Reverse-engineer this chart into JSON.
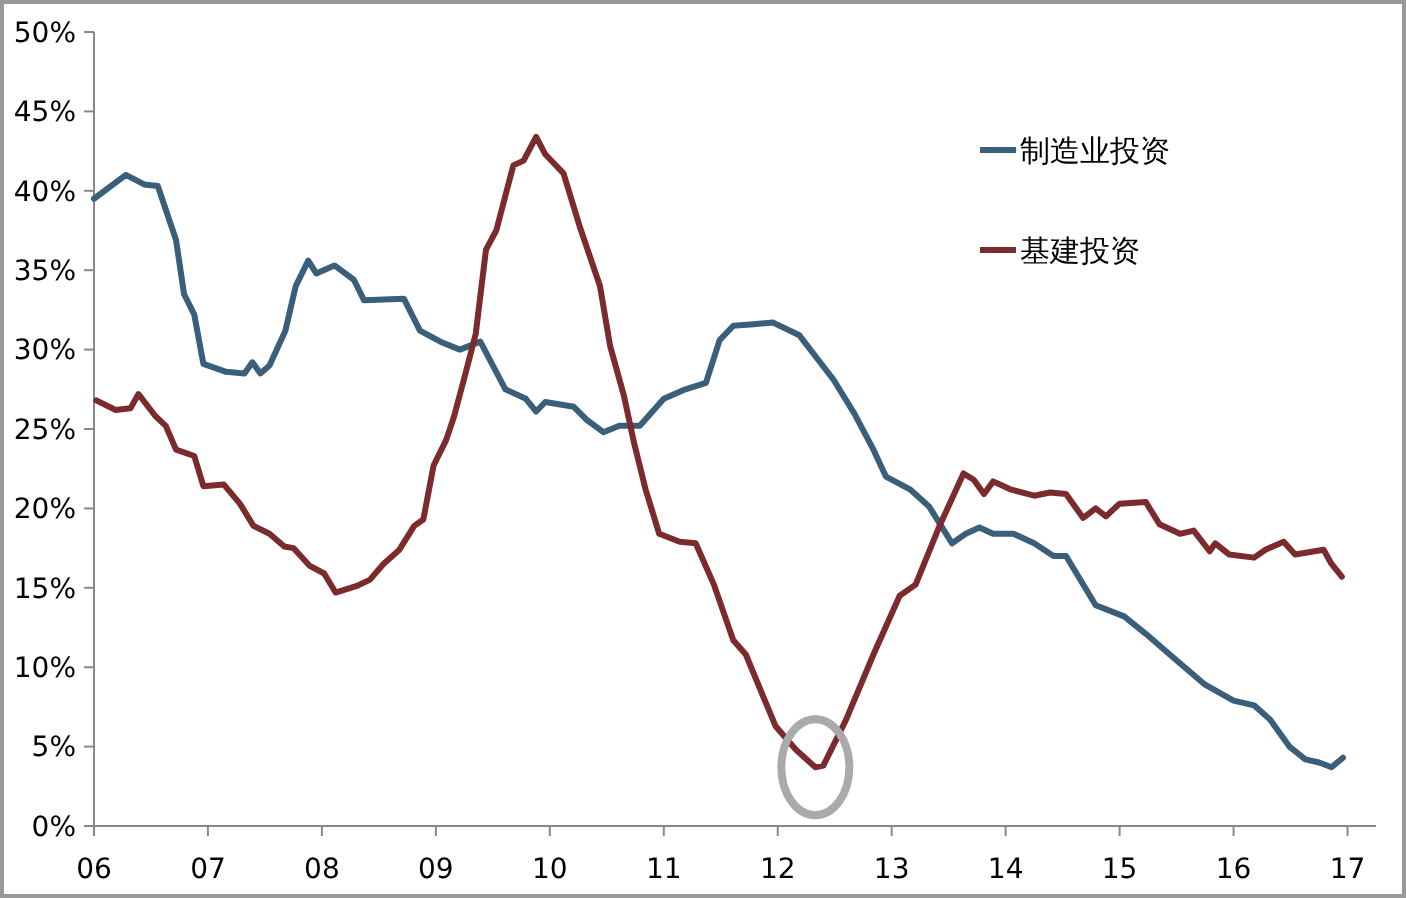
{
  "chart_data": {
    "type": "line",
    "xlim": [
      2006,
      2017.25
    ],
    "ylim": [
      0,
      50
    ],
    "xticks": [
      {
        "value": 2006,
        "label": "06"
      },
      {
        "value": 2007,
        "label": "07"
      },
      {
        "value": 2008,
        "label": "08"
      },
      {
        "value": 2009,
        "label": "09"
      },
      {
        "value": 2010,
        "label": "10"
      },
      {
        "value": 2011,
        "label": "11"
      },
      {
        "value": 2012,
        "label": "12"
      },
      {
        "value": 2013,
        "label": "13"
      },
      {
        "value": 2014,
        "label": "14"
      },
      {
        "value": 2015,
        "label": "15"
      },
      {
        "value": 2016,
        "label": "16"
      },
      {
        "value": 2017,
        "label": "17"
      }
    ],
    "yticks": [
      {
        "value": 0,
        "label": "0%"
      },
      {
        "value": 5,
        "label": "5%"
      },
      {
        "value": 10,
        "label": "10%"
      },
      {
        "value": 15,
        "label": "15%"
      },
      {
        "value": 20,
        "label": "20%"
      },
      {
        "value": 25,
        "label": "25%"
      },
      {
        "value": 30,
        "label": "30%"
      },
      {
        "value": 35,
        "label": "35%"
      },
      {
        "value": 40,
        "label": "40%"
      },
      {
        "value": 45,
        "label": "45%"
      },
      {
        "value": 50,
        "label": "50%"
      }
    ],
    "legend": "top right",
    "grid": false,
    "marker": "none",
    "line_style": "solid",
    "series": [
      {
        "name": "制造业投资",
        "color": "#3a5f7a",
        "x": [
          2006,
          2006.28,
          2006.44,
          2006.56,
          2006.72,
          2006.79,
          2006.88,
          2006.96,
          2007.16,
          2007.32,
          2007.39,
          2007.46,
          2007.54,
          2007.68,
          2007.77,
          2007.88,
          2007.95,
          2008.11,
          2008.28,
          2008.37,
          2008.72,
          2008.86,
          2009.04,
          2009.21,
          2009.39,
          2009.61,
          2009.79,
          2009.88,
          2009.96,
          2010.21,
          2010.32,
          2010.47,
          2010.61,
          2010.79,
          2011,
          2011.19,
          2011.37,
          2011.49,
          2011.61,
          2011.79,
          2011.96,
          2012.19,
          2012.49,
          2012.67,
          2012.84,
          2012.95,
          2013.16,
          2013.33,
          2013.53,
          2013.65,
          2013.77,
          2013.89,
          2014.07,
          2014.25,
          2014.42,
          2014.53,
          2014.79,
          2015.04,
          2015.23,
          2015.44,
          2015.75,
          2016,
          2016.18,
          2016.32,
          2016.49,
          2016.63,
          2016.75,
          2016.86,
          2016.96
        ],
        "values": [
          39.5,
          41,
          40.4,
          40.3,
          36.9,
          33.5,
          32.2,
          29.1,
          28.6,
          28.5,
          29.2,
          28.5,
          29,
          31.2,
          34,
          35.6,
          34.8,
          35.3,
          34.4,
          33.1,
          33.2,
          31.2,
          30.5,
          30,
          30.5,
          27.5,
          26.9,
          26.1,
          26.7,
          26.4,
          25.6,
          24.8,
          25.2,
          25.2,
          26.9,
          27.5,
          27.9,
          30.6,
          31.5,
          31.6,
          31.7,
          30.9,
          28.1,
          26,
          23.7,
          22,
          21.2,
          20.1,
          17.8,
          18.4,
          18.8,
          18.4,
          18.4,
          17.8,
          17,
          17,
          13.9,
          13.2,
          12.1,
          10.8,
          8.9,
          7.9,
          7.6,
          6.7,
          5,
          4.2,
          4,
          3.7,
          4.3
        ]
      },
      {
        "name": "基建投资",
        "color": "#7b2a2e",
        "x": [
          2006.02,
          2006.19,
          2006.32,
          2006.39,
          2006.54,
          2006.63,
          2006.72,
          2006.88,
          2006.96,
          2007.14,
          2007.28,
          2007.4,
          2007.54,
          2007.67,
          2007.75,
          2007.89,
          2008.02,
          2008.12,
          2008.3,
          2008.42,
          2008.54,
          2008.68,
          2008.81,
          2008.89,
          2008.98,
          2009.09,
          2009.16,
          2009.26,
          2009.35,
          2009.44,
          2009.53,
          2009.68,
          2009.77,
          2009.88,
          2009.96,
          2010.12,
          2010.26,
          2010.44,
          2010.53,
          2010.65,
          2010.74,
          2010.84,
          2010.96,
          2011.14,
          2011.28,
          2011.44,
          2011.61,
          2011.72,
          2011.98,
          2012.16,
          2012.33,
          2012.4,
          2012.6,
          2012.84,
          2013.07,
          2013.21,
          2013.42,
          2013.63,
          2013.72,
          2013.81,
          2013.89,
          2014.04,
          2014.25,
          2014.39,
          2014.53,
          2014.68,
          2014.79,
          2014.88,
          2015,
          2015.23,
          2015.35,
          2015.53,
          2015.65,
          2015.79,
          2015.84,
          2015.96,
          2016.18,
          2016.28,
          2016.44,
          2016.54,
          2016.79,
          2016.86,
          2016.95
        ],
        "values": [
          26.8,
          26.2,
          26.3,
          27.2,
          25.8,
          25.2,
          23.7,
          23.3,
          21.4,
          21.5,
          20.3,
          18.9,
          18.4,
          17.6,
          17.5,
          16.4,
          15.9,
          14.7,
          15.1,
          15.5,
          16.5,
          17.4,
          18.9,
          19.3,
          22.7,
          24.3,
          25.8,
          28.5,
          31,
          36.3,
          37.5,
          41.6,
          41.9,
          43.4,
          42.3,
          41.1,
          37.8,
          34,
          30.2,
          27.1,
          24.1,
          21.2,
          18.4,
          17.9,
          17.8,
          15.2,
          11.7,
          10.8,
          6.3,
          4.8,
          3.7,
          3.8,
          6.7,
          10.8,
          14.5,
          15.2,
          18.9,
          22.2,
          21.8,
          20.9,
          21.7,
          21.2,
          20.8,
          21,
          20.9,
          19.4,
          20,
          19.5,
          20.3,
          20.4,
          19,
          18.4,
          18.6,
          17.3,
          17.8,
          17.1,
          16.9,
          17.4,
          17.9,
          17.1,
          17.4,
          16.5,
          15.7
        ]
      }
    ]
  }
}
